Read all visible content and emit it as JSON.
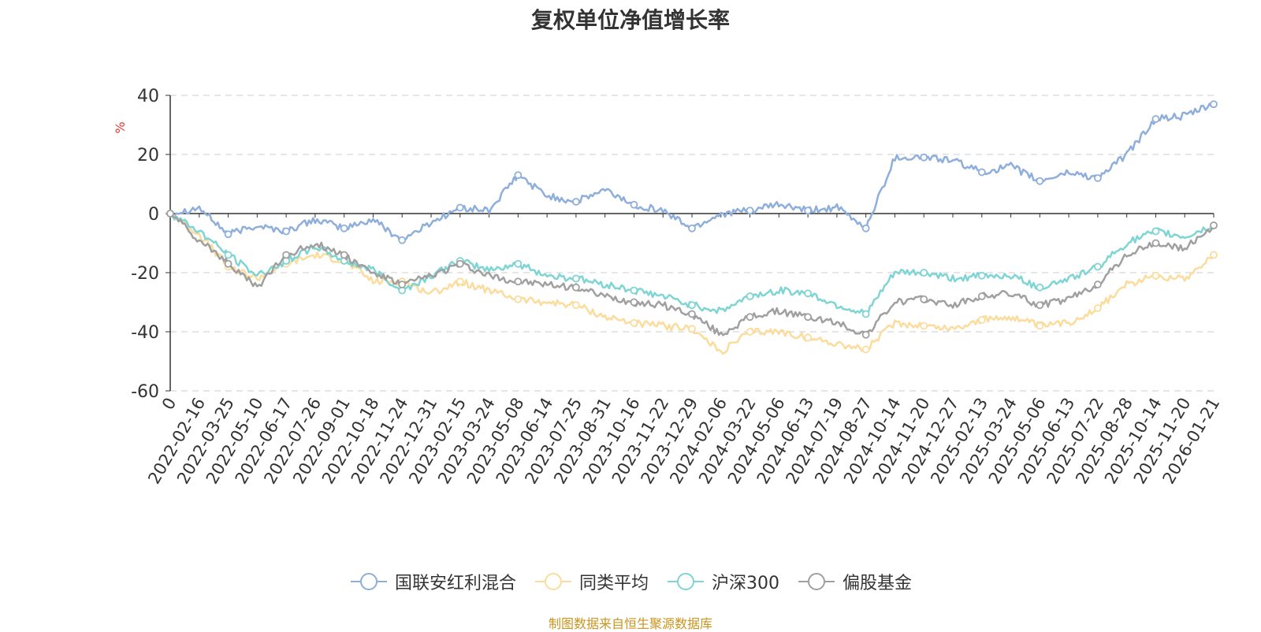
{
  "chart_data": {
    "type": "line",
    "title": "复权单位净值增长率",
    "ylabel": "%",
    "xlabel": "",
    "ylim": [
      -60,
      40
    ],
    "yticks": [
      40,
      20,
      0,
      -20,
      -40,
      -60
    ],
    "grid": true,
    "legend_position": "bottom-center",
    "x": [
      "0",
      "2022-02-16",
      "2022-03-25",
      "2022-05-10",
      "2022-06-17",
      "2022-07-26",
      "2022-09-01",
      "2022-10-18",
      "2022-11-24",
      "2022-12-31",
      "2023-02-15",
      "2023-03-24",
      "2023-05-08",
      "2023-06-14",
      "2023-07-25",
      "2023-08-31",
      "2023-10-16",
      "2023-11-22",
      "2023-12-29",
      "2024-02-06",
      "2024-03-22",
      "2024-05-06",
      "2024-06-13",
      "2024-07-19",
      "2024-08-27",
      "2024-10-14",
      "2024-11-20",
      "2024-12-27",
      "2025-02-13",
      "2025-03-24",
      "2025-05-06",
      "2025-06-13",
      "2025-07-22",
      "2025-08-28",
      "2025-10-14",
      "2025-11-20",
      "2026-01-21"
    ],
    "series": [
      {
        "name": "国联安红利混合",
        "color": "#8eaedc",
        "values": [
          0,
          2,
          -7,
          -4,
          -6,
          -2,
          -5,
          -2,
          -9,
          -3,
          2,
          1,
          13,
          6,
          4,
          8,
          3,
          1,
          -5,
          0,
          1,
          3,
          1,
          2,
          -5,
          19,
          19,
          18,
          14,
          16,
          11,
          14,
          12,
          20,
          32,
          33,
          37
        ]
      },
      {
        "name": "同类平均",
        "color": "#fbdc9c",
        "values": [
          0,
          -7,
          -18,
          -22,
          -17,
          -14,
          -16,
          -23,
          -23,
          -27,
          -23,
          -26,
          -29,
          -30,
          -31,
          -35,
          -37,
          -38,
          -39,
          -47,
          -40,
          -40,
          -42,
          -44,
          -46,
          -37,
          -38,
          -39,
          -36,
          -35,
          -38,
          -37,
          -32,
          -24,
          -21,
          -22,
          -14
        ]
      },
      {
        "name": "沪深300",
        "color": "#7fd4d4",
        "values": [
          0,
          -6,
          -14,
          -21,
          -16,
          -11,
          -16,
          -19,
          -26,
          -21,
          -16,
          -19,
          -17,
          -21,
          -22,
          -24,
          -26,
          -28,
          -31,
          -33,
          -28,
          -26,
          -27,
          -31,
          -34,
          -20,
          -20,
          -22,
          -21,
          -21,
          -25,
          -22,
          -18,
          -10,
          -6,
          -8,
          -4
        ]
      },
      {
        "name": "偏股基金",
        "color": "#a0a0a0",
        "values": [
          0,
          -9,
          -17,
          -25,
          -14,
          -10,
          -14,
          -20,
          -24,
          -21,
          -17,
          -21,
          -23,
          -24,
          -25,
          -28,
          -30,
          -31,
          -34,
          -41,
          -35,
          -33,
          -35,
          -37,
          -41,
          -30,
          -29,
          -31,
          -28,
          -27,
          -31,
          -29,
          -24,
          -14,
          -10,
          -12,
          -4
        ]
      }
    ]
  },
  "footer": {
    "source": "制图数据来自恒生聚源数据库"
  }
}
